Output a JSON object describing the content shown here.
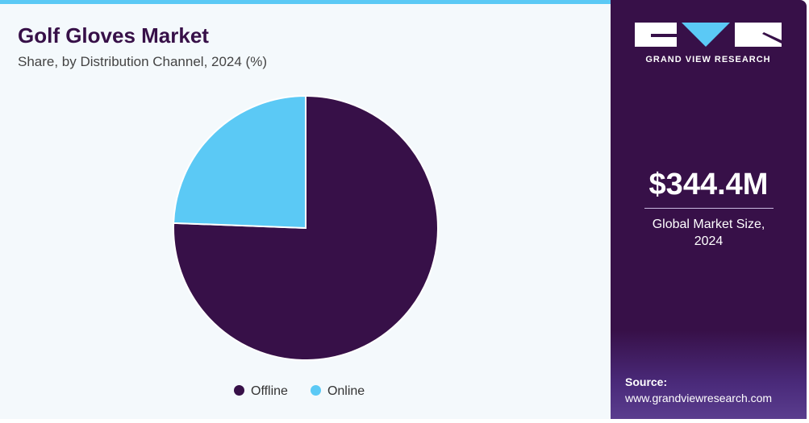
{
  "header": {
    "title": "Golf Gloves Market",
    "subtitle": "Share, by Distribution Channel, 2024 (%)"
  },
  "chart_data": {
    "type": "pie",
    "title": "Golf Gloves Market",
    "subtitle": "Share, by Distribution Channel, 2024 (%)",
    "categories": [
      "Offline",
      "Online"
    ],
    "values": [
      75.6,
      24.4
    ],
    "colors": [
      "#371048",
      "#5bc9f5"
    ],
    "start_angle": "top, clockwise",
    "legend_position": "bottom"
  },
  "sidebar": {
    "logo_text": "GRAND VIEW RESEARCH",
    "market_value": "$344.4M",
    "market_label_line1": "Global Market Size,",
    "market_label_line2": "2024",
    "source_label": "Source:",
    "source_url": "www.grandviewresearch.com"
  }
}
